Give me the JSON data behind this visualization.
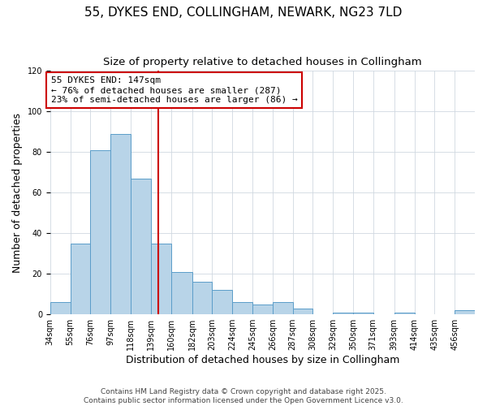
{
  "title": "55, DYKES END, COLLINGHAM, NEWARK, NG23 7LD",
  "subtitle": "Size of property relative to detached houses in Collingham",
  "xlabel": "Distribution of detached houses by size in Collingham",
  "ylabel": "Number of detached properties",
  "bar_color": "#b8d4e8",
  "bar_edge_color": "#5b9dc9",
  "background_color": "#ffffff",
  "plot_bg_color": "#ffffff",
  "bin_labels": [
    "34sqm",
    "55sqm",
    "76sqm",
    "97sqm",
    "118sqm",
    "139sqm",
    "160sqm",
    "182sqm",
    "203sqm",
    "224sqm",
    "245sqm",
    "266sqm",
    "287sqm",
    "308sqm",
    "329sqm",
    "350sqm",
    "371sqm",
    "393sqm",
    "414sqm",
    "435sqm",
    "456sqm"
  ],
  "bar_heights": [
    6,
    35,
    81,
    89,
    67,
    35,
    21,
    16,
    12,
    6,
    5,
    6,
    3,
    0,
    1,
    1,
    0,
    1,
    0,
    0,
    2
  ],
  "bin_edges": [
    34,
    55,
    76,
    97,
    118,
    139,
    160,
    182,
    203,
    224,
    245,
    266,
    287,
    308,
    329,
    350,
    371,
    393,
    414,
    435,
    456,
    477
  ],
  "vertical_line_x": 147,
  "annotation_title": "55 DYKES END: 147sqm",
  "annotation_line1": "← 76% of detached houses are smaller (287)",
  "annotation_line2": "23% of semi-detached houses are larger (86) →",
  "ylim": [
    0,
    120
  ],
  "yticks": [
    0,
    20,
    40,
    60,
    80,
    100,
    120
  ],
  "footer1": "Contains HM Land Registry data © Crown copyright and database right 2025.",
  "footer2": "Contains public sector information licensed under the Open Government Licence v3.0.",
  "grid_color": "#d0d8e0",
  "vline_color": "#cc0000",
  "annotation_box_edge": "#cc0000",
  "title_fontsize": 11,
  "subtitle_fontsize": 9.5,
  "axis_label_fontsize": 9,
  "tick_fontsize": 7,
  "annotation_fontsize": 8,
  "footer_fontsize": 6.5
}
